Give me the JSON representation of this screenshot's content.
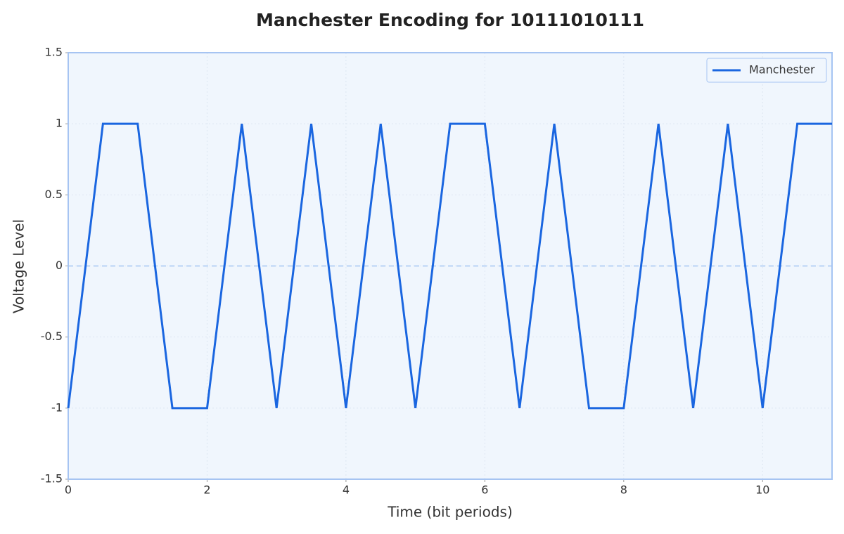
{
  "chart_data": {
    "type": "line",
    "title": "Manchester Encoding for 10111010111",
    "xlabel": "Time (bit periods)",
    "ylabel": "Voltage Level",
    "x": [
      0,
      0.5,
      1,
      1.5,
      2,
      2.5,
      3,
      3.5,
      4,
      4.5,
      5,
      5.5,
      6,
      6.5,
      7,
      7.5,
      8,
      8.5,
      9,
      9.5,
      10,
      10.5,
      11
    ],
    "series": [
      {
        "name": "Manchester",
        "color": "#1a66e0",
        "values": [
          -1,
          1,
          1,
          -1,
          -1,
          1,
          -1,
          1,
          -1,
          1,
          -1,
          1,
          1,
          -1,
          1,
          -1,
          -1,
          1,
          -1,
          1,
          -1,
          1,
          1
        ]
      }
    ],
    "xlim": [
      0,
      11
    ],
    "xticks": [
      0,
      2,
      4,
      6,
      8,
      10
    ],
    "ylim": [
      -1.5,
      1.5
    ],
    "yticks": [
      -1.5,
      -1,
      -0.5,
      0,
      0.5,
      1,
      1.5
    ],
    "hline": 0,
    "grid": true,
    "legend": "upper right"
  }
}
